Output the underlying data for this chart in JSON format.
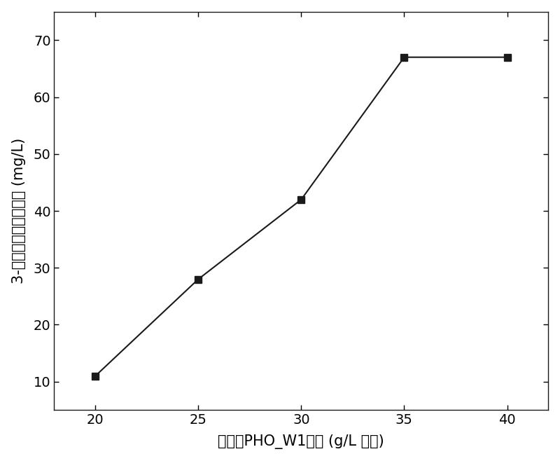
{
  "x": [
    20,
    25,
    30,
    35,
    40
  ],
  "y": [
    11,
    28,
    42,
    67,
    67
  ],
  "xlabel": "工程菌PHO_W1干重 (g/L 干重)",
  "ylabel": "3-甲基儿茶酚的生成量 (mg/L)",
  "xlim": [
    18,
    42
  ],
  "ylim": [
    5,
    75
  ],
  "xticks": [
    20,
    25,
    30,
    35,
    40
  ],
  "yticks": [
    10,
    20,
    30,
    40,
    50,
    60,
    70
  ],
  "line_color": "#1a1a1a",
  "marker": "s",
  "marker_color": "#1a1a1a",
  "marker_size": 7,
  "line_width": 1.5,
  "background_color": "#ffffff",
  "xlabel_fontsize": 15,
  "ylabel_fontsize": 15,
  "tick_fontsize": 14
}
